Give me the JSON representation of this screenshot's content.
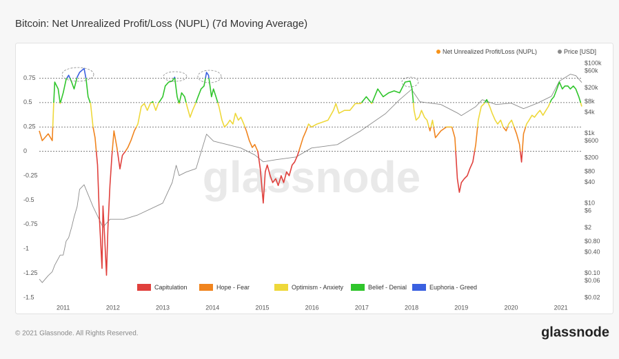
{
  "chart_data": {
    "type": "line",
    "title": "Bitcoin: Net Unrealized Profit/Loss (NUPL) (7d Moving Average)",
    "watermark": "glassnode",
    "copyright": "© 2021 Glassnode. All Rights Reserved.",
    "logo": "glassnode",
    "xlim": [
      2010.52,
      2021.42
    ],
    "xticks": [
      2011,
      2012,
      2013,
      2014,
      2015,
      2016,
      2017,
      2018,
      2019,
      2020,
      2021
    ],
    "ylim": [
      -1.5,
      0.93
    ],
    "yticks": [
      0.75,
      0.5,
      0.25,
      0,
      -0.25,
      -0.5,
      -0.75,
      -1,
      -1.25,
      -1.5
    ],
    "y2lim": [
      0.02,
      120000
    ],
    "y2scale": "log",
    "y2ticks": [
      {
        "value": 100000,
        "label": "$100k"
      },
      {
        "value": 60000,
        "label": "$60k"
      },
      {
        "value": 20000,
        "label": "$20k"
      },
      {
        "value": 8000,
        "label": "$8k"
      },
      {
        "value": 4000,
        "label": "$4k"
      },
      {
        "value": 1000,
        "label": "$1k"
      },
      {
        "value": 600,
        "label": "$600"
      },
      {
        "value": 200,
        "label": "$200"
      },
      {
        "value": 80,
        "label": "$80"
      },
      {
        "value": 40,
        "label": "$40"
      },
      {
        "value": 10,
        "label": "$10"
      },
      {
        "value": 6,
        "label": "$6"
      },
      {
        "value": 2,
        "label": "$2"
      },
      {
        "value": 0.8,
        "label": "$0.80"
      },
      {
        "value": 0.4,
        "label": "$0.40"
      },
      {
        "value": 0.1,
        "label": "$0.10"
      },
      {
        "value": 0.06,
        "label": "$0.06"
      },
      {
        "value": 0.02,
        "label": "$0.02"
      }
    ],
    "zone_lines": [
      0,
      0.25,
      0.5,
      0.75
    ],
    "zones": [
      {
        "name": "Capitulation",
        "color": "#e0403c"
      },
      {
        "name": "Hope - Fear",
        "color": "#f0841e"
      },
      {
        "name": "Optimism - Anxiety",
        "color": "#eed83a"
      },
      {
        "name": "Belief - Denial",
        "color": "#2fc52b"
      },
      {
        "name": "Euphoria - Greed",
        "color": "#3a60e0"
      }
    ],
    "series": [
      {
        "name": "Net Unrealized Profit/Loss (NUPL)",
        "color": "#f7931a",
        "coloring": "zones",
        "x": [
          2010.52,
          2010.58,
          2010.7,
          2010.78,
          2010.81,
          2010.83,
          2010.9,
          2010.94,
          2011.0,
          2011.06,
          2011.11,
          2011.17,
          2011.22,
          2011.28,
          2011.33,
          2011.42,
          2011.46,
          2011.5,
          2011.55,
          2011.6,
          2011.64,
          2011.69,
          2011.73,
          2011.78,
          2011.8,
          2011.83,
          2011.87,
          2011.9,
          2011.94,
          2011.98,
          2012.02,
          2012.08,
          2012.14,
          2012.19,
          2012.25,
          2012.3,
          2012.36,
          2012.43,
          2012.5,
          2012.57,
          2012.63,
          2012.69,
          2012.75,
          2012.8,
          2012.86,
          2012.91,
          2013.0,
          2013.05,
          2013.12,
          2013.19,
          2013.24,
          2013.29,
          2013.33,
          2013.38,
          2013.44,
          2013.49,
          2013.55,
          2013.6,
          2013.66,
          2013.71,
          2013.77,
          2013.83,
          2013.88,
          2013.92,
          2013.98,
          2014.02,
          2014.07,
          2014.13,
          2014.19,
          2014.24,
          2014.3,
          2014.35,
          2014.41,
          2014.46,
          2014.52,
          2014.57,
          2014.63,
          2014.68,
          2014.74,
          2014.8,
          2014.85,
          2014.91,
          2014.96,
          2015.02,
          2015.06,
          2015.1,
          2015.16,
          2015.21,
          2015.27,
          2015.32,
          2015.38,
          2015.43,
          2015.49,
          2015.54,
          2015.6,
          2015.65,
          2015.71,
          2015.76,
          2015.82,
          2015.88,
          2015.93,
          2015.99,
          2016.1,
          2016.21,
          2016.32,
          2016.43,
          2016.48,
          2016.54,
          2016.65,
          2016.76,
          2016.87,
          2016.98,
          2017.09,
          2017.2,
          2017.32,
          2017.43,
          2017.54,
          2017.65,
          2017.76,
          2017.87,
          2017.97,
          2018.01,
          2018.05,
          2018.09,
          2018.15,
          2018.2,
          2018.26,
          2018.31,
          2018.37,
          2018.42,
          2018.48,
          2018.59,
          2018.7,
          2018.81,
          2018.87,
          2018.92,
          2018.96,
          2019.0,
          2019.06,
          2019.12,
          2019.17,
          2019.23,
          2019.29,
          2019.34,
          2019.4,
          2019.46,
          2019.51,
          2019.57,
          2019.62,
          2019.68,
          2019.73,
          2019.79,
          2019.84,
          2019.9,
          2019.95,
          2020.01,
          2020.06,
          2020.11,
          2020.17,
          2020.21,
          2020.25,
          2020.31,
          2020.36,
          2020.42,
          2020.47,
          2020.53,
          2020.58,
          2020.64,
          2020.7,
          2020.75,
          2020.81,
          2020.86,
          2020.92,
          2020.97,
          2021.03,
          2021.08,
          2021.14,
          2021.19,
          2021.25,
          2021.3,
          2021.36,
          2021.42
        ],
        "values": [
          0.21,
          0.11,
          0.18,
          0.11,
          0.49,
          0.71,
          0.64,
          0.49,
          0.6,
          0.74,
          0.78,
          0.71,
          0.64,
          0.76,
          0.81,
          0.85,
          0.74,
          0.56,
          0.49,
          0.25,
          0.14,
          -0.14,
          -0.71,
          -1.2,
          -0.56,
          -0.85,
          -1.27,
          -0.78,
          -0.35,
          -0.04,
          0.21,
          0.04,
          -0.18,
          -0.04,
          0,
          0.04,
          0.11,
          0.21,
          0.28,
          0.46,
          0.49,
          0.42,
          0.49,
          0.51,
          0.42,
          0.49,
          0.56,
          0.67,
          0.71,
          0.72,
          0.76,
          0.56,
          0.49,
          0.6,
          0.56,
          0.46,
          0.35,
          0.42,
          0.49,
          0.56,
          0.64,
          0.67,
          0.81,
          0.78,
          0.56,
          0.64,
          0.56,
          0.46,
          0.32,
          0.25,
          0.28,
          0.32,
          0.28,
          0.39,
          0.32,
          0.35,
          0.28,
          0.21,
          0.11,
          0.04,
          0.07,
          0,
          -0.18,
          -0.53,
          -0.21,
          -0.14,
          -0.25,
          -0.32,
          -0.28,
          -0.35,
          -0.25,
          -0.32,
          -0.21,
          -0.25,
          -0.14,
          -0.11,
          -0.04,
          0.04,
          0.14,
          0.21,
          0.28,
          0.25,
          0.28,
          0.3,
          0.32,
          0.42,
          0.49,
          0.39,
          0.42,
          0.42,
          0.49,
          0.49,
          0.56,
          0.49,
          0.64,
          0.56,
          0.6,
          0.62,
          0.6,
          0.71,
          0.72,
          0.64,
          0.42,
          0.32,
          0.35,
          0.42,
          0.35,
          0.32,
          0.21,
          0.32,
          0.14,
          0.21,
          0.25,
          0.25,
          0.14,
          -0.28,
          -0.42,
          -0.32,
          -0.28,
          -0.25,
          -0.18,
          -0.11,
          0.07,
          0.32,
          0.46,
          0.49,
          0.53,
          0.46,
          0.39,
          0.32,
          0.28,
          0.32,
          0.25,
          0.21,
          0.28,
          0.32,
          0.25,
          0.18,
          0.07,
          -0.11,
          0.18,
          0.28,
          0.32,
          0.37,
          0.35,
          0.39,
          0.42,
          0.37,
          0.42,
          0.46,
          0.53,
          0.56,
          0.64,
          0.71,
          0.64,
          0.67,
          0.67,
          0.64,
          0.67,
          0.64,
          0.56,
          0.46
        ]
      },
      {
        "name": "Price [USD]",
        "color": "#8a8a8a",
        "axis": "y2",
        "x": [
          2010.52,
          2010.58,
          2010.7,
          2010.78,
          2010.83,
          2010.94,
          2011.0,
          2011.06,
          2011.11,
          2011.17,
          2011.22,
          2011.28,
          2011.33,
          2011.42,
          2011.6,
          2011.8,
          2011.94,
          2012.22,
          2012.5,
          2013.0,
          2013.19,
          2013.27,
          2013.33,
          2013.47,
          2013.67,
          2013.88,
          2014.02,
          2014.3,
          2014.57,
          2014.85,
          2015.02,
          2015.27,
          2015.68,
          2015.99,
          2016.51,
          2016.98,
          2017.48,
          2017.76,
          2018.0,
          2018.17,
          2018.59,
          2018.94,
          2019.0,
          2019.29,
          2019.42,
          2019.7,
          2020.0,
          2020.25,
          2020.53,
          2020.81,
          2020.97,
          2021.19,
          2021.3,
          2021.42
        ],
        "values": [
          0.068,
          0.054,
          0.086,
          0.11,
          0.17,
          0.33,
          0.33,
          0.83,
          1.04,
          2.06,
          4.06,
          8.03,
          25,
          34,
          8.03,
          2.06,
          3.5,
          3.5,
          4.66,
          10.1,
          39,
          122,
          62,
          78,
          98,
          946,
          600,
          478,
          381,
          242,
          154,
          176,
          211,
          381,
          478,
          1186,
          3690,
          9160,
          18070,
          8000,
          6670,
          3690,
          3220,
          5820,
          9160,
          6670,
          7300,
          5070,
          7300,
          11480,
          31200,
          49200,
          44900,
          28500
        ]
      }
    ]
  }
}
